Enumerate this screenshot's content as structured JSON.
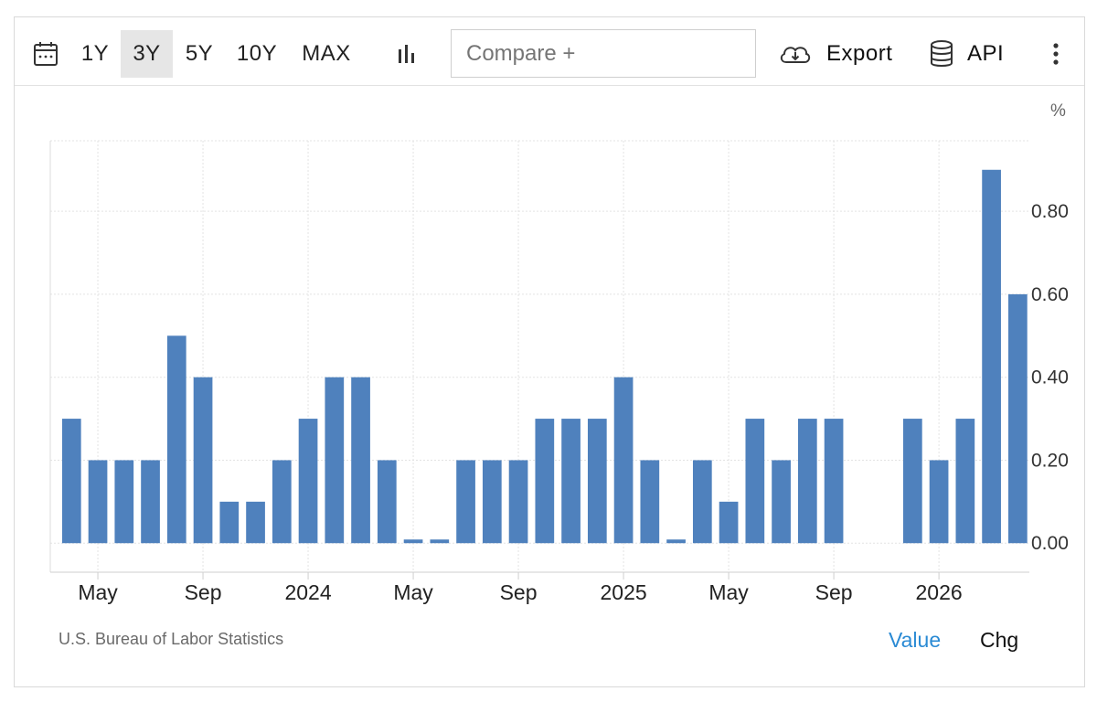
{
  "toolbar": {
    "ranges": [
      "1Y",
      "3Y",
      "5Y",
      "10Y",
      "MAX"
    ],
    "active_range": "3Y",
    "compare_placeholder": "Compare +",
    "export_label": "Export",
    "api_label": "API",
    "icons": [
      "calendar-icon",
      "bar-chart-icon",
      "cloud-download-icon",
      "database-icon",
      "more-vertical-icon"
    ]
  },
  "footer": {
    "source": "U.S. Bureau of Labor Statistics",
    "value_label": "Value",
    "chg_label": "Chg"
  },
  "colors": {
    "bar": "#4f81bd",
    "accent": "#2a8ad4",
    "grid": "#e3e3e3"
  },
  "chart_data": {
    "type": "bar",
    "title": "",
    "xlabel": "",
    "ylabel": "%",
    "ylim": [
      -0.07,
      0.97
    ],
    "yticks": [
      0.0,
      0.2,
      0.4,
      0.6,
      0.8
    ],
    "ytick_labels": [
      "0.00",
      "0.20",
      "0.40",
      "0.60",
      "0.80"
    ],
    "y_axis_position": "right",
    "grid": true,
    "categories": [
      "2023-04",
      "2023-05",
      "2023-06",
      "2023-07",
      "2023-08",
      "2023-09",
      "2023-10",
      "2023-11",
      "2023-12",
      "2024-01",
      "2024-02",
      "2024-03",
      "2024-04",
      "2024-05",
      "2024-06",
      "2024-07",
      "2024-08",
      "2024-09",
      "2024-10",
      "2024-11",
      "2024-12",
      "2025-01",
      "2025-02",
      "2025-03",
      "2025-04",
      "2025-05",
      "2025-06",
      "2025-07",
      "2025-08",
      "2025-09",
      "2025-10",
      "2025-11",
      "2025-12",
      "2026-01",
      "2026-02",
      "2026-03",
      "2026-04",
      "2026-05"
    ],
    "values": [
      0.3,
      0.2,
      0.2,
      0.2,
      0.5,
      0.4,
      0.1,
      0.1,
      0.2,
      0.3,
      0.4,
      0.4,
      0.2,
      0.0,
      0.0,
      0.2,
      0.2,
      0.2,
      0.3,
      0.3,
      0.3,
      0.4,
      0.2,
      0.0,
      0.2,
      0.1,
      0.3,
      0.2,
      0.3,
      0.3,
      null,
      null,
      0.3,
      0.2,
      0.3,
      0.9,
      0.6,
      null
    ],
    "xtick_labels": [
      {
        "label": "May",
        "category": "2023-05"
      },
      {
        "label": "Sep",
        "category": "2023-09"
      },
      {
        "label": "2024",
        "category": "2024-01"
      },
      {
        "label": "May",
        "category": "2024-05"
      },
      {
        "label": "Sep",
        "category": "2024-09"
      },
      {
        "label": "2025",
        "category": "2025-01"
      },
      {
        "label": "May",
        "category": "2025-05"
      },
      {
        "label": "Sep",
        "category": "2025-09"
      },
      {
        "label": "2026",
        "category": "2026-01"
      }
    ]
  }
}
